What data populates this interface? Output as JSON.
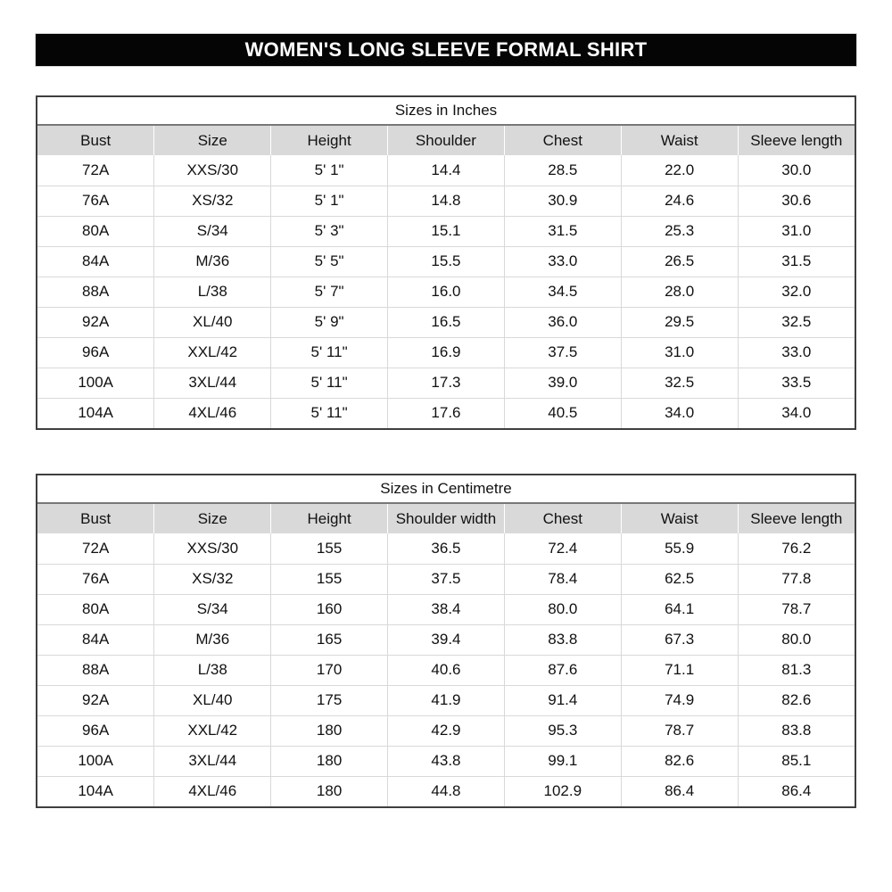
{
  "title_bar": {
    "text": "WOMEN'S LONG SLEEVE FORMAL SHIRT",
    "bg_color": "#050505",
    "text_color": "#ffffff"
  },
  "colors": {
    "header_row_bg": "#d9d9d9",
    "outer_border": "#3f3f3f",
    "grid_line": "#d9d9d9",
    "caption_separator": "#787878"
  },
  "tables": [
    {
      "caption": "Sizes in Inches",
      "columns": [
        "Bust",
        "Size",
        "Height",
        "Shoulder",
        "Chest",
        "Waist",
        "Sleeve length"
      ],
      "rows": [
        [
          "72A",
          "XXS/30",
          "5' 1\"",
          "14.4",
          "28.5",
          "22.0",
          "30.0"
        ],
        [
          "76A",
          "XS/32",
          "5' 1\"",
          "14.8",
          "30.9",
          "24.6",
          "30.6"
        ],
        [
          "80A",
          "S/34",
          "5' 3\"",
          "15.1",
          "31.5",
          "25.3",
          "31.0"
        ],
        [
          "84A",
          "M/36",
          "5' 5\"",
          "15.5",
          "33.0",
          "26.5",
          "31.5"
        ],
        [
          "88A",
          "L/38",
          "5' 7\"",
          "16.0",
          "34.5",
          "28.0",
          "32.0"
        ],
        [
          "92A",
          "XL/40",
          "5' 9\"",
          "16.5",
          "36.0",
          "29.5",
          "32.5"
        ],
        [
          "96A",
          "XXL/42",
          "5' 11\"",
          "16.9",
          "37.5",
          "31.0",
          "33.0"
        ],
        [
          "100A",
          "3XL/44",
          "5' 11\"",
          "17.3",
          "39.0",
          "32.5",
          "33.5"
        ],
        [
          "104A",
          "4XL/46",
          "5' 11\"",
          "17.6",
          "40.5",
          "34.0",
          "34.0"
        ]
      ]
    },
    {
      "caption": "Sizes in Centimetre",
      "columns": [
        "Bust",
        "Size",
        "Height",
        "Shoulder width",
        "Chest",
        "Waist",
        "Sleeve length"
      ],
      "rows": [
        [
          "72A",
          "XXS/30",
          "155",
          "36.5",
          "72.4",
          "55.9",
          "76.2"
        ],
        [
          "76A",
          "XS/32",
          "155",
          "37.5",
          "78.4",
          "62.5",
          "77.8"
        ],
        [
          "80A",
          "S/34",
          "160",
          "38.4",
          "80.0",
          "64.1",
          "78.7"
        ],
        [
          "84A",
          "M/36",
          "165",
          "39.4",
          "83.8",
          "67.3",
          "80.0"
        ],
        [
          "88A",
          "L/38",
          "170",
          "40.6",
          "87.6",
          "71.1",
          "81.3"
        ],
        [
          "92A",
          "XL/40",
          "175",
          "41.9",
          "91.4",
          "74.9",
          "82.6"
        ],
        [
          "96A",
          "XXL/42",
          "180",
          "42.9",
          "95.3",
          "78.7",
          "83.8"
        ],
        [
          "100A",
          "3XL/44",
          "180",
          "43.8",
          "99.1",
          "82.6",
          "85.1"
        ],
        [
          "104A",
          "4XL/46",
          "180",
          "44.8",
          "102.9",
          "86.4",
          "86.4"
        ]
      ]
    }
  ]
}
